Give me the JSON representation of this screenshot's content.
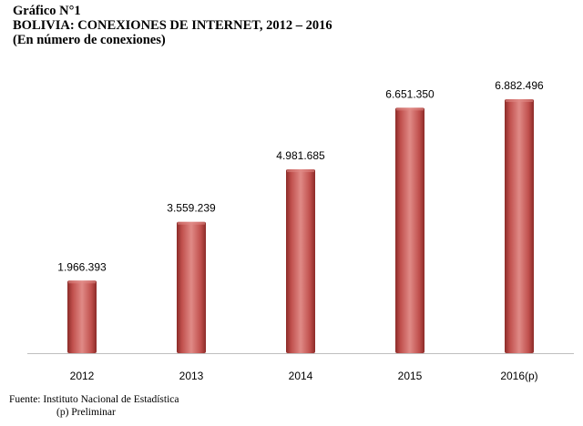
{
  "header": {
    "figure_label": "Gráfico N°1",
    "title": "BOLIVIA: CONEXIONES DE INTERNET, 2012 – 2016",
    "subtitle": "(En número de conexiones)"
  },
  "chart_data": {
    "type": "bar",
    "title": "BOLIVIA: CONEXIONES DE INTERNET, 2012 – 2016",
    "subtitle": "(En número de conexiones)",
    "categories": [
      "2012",
      "2013",
      "2014",
      "2015",
      "2016(p)"
    ],
    "values": [
      1966393,
      3559239,
      4981685,
      6651350,
      6882496
    ],
    "value_labels": [
      "1.966.393",
      "3.559.239",
      "4.981.685",
      "6.651.350",
      "6.882.496"
    ],
    "xlabel": "",
    "ylabel": "",
    "ylim": [
      0,
      8000000
    ],
    "grid": false,
    "bar_color": "#c0504d",
    "bar_dark_color": "#8c2b28",
    "bar_light_color": "#e08a86",
    "axis_color": "#bfbfbf"
  },
  "footer": {
    "source": "Fuente: Instituto Nacional de Estadística",
    "note": "(p) Preliminar"
  }
}
